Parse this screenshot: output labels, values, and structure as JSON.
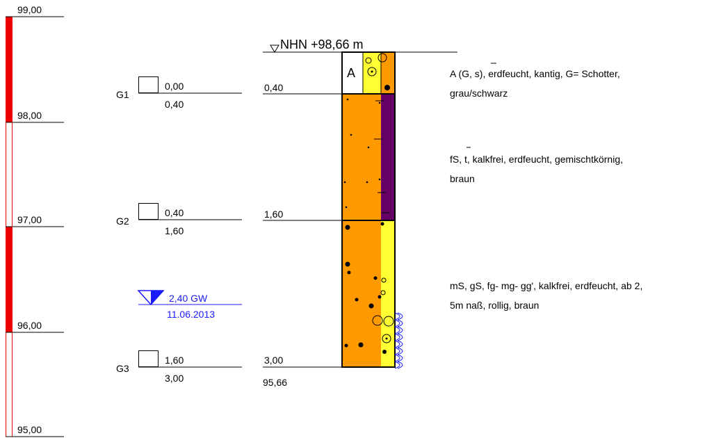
{
  "elevation_scale": {
    "ticks": [
      "99,00",
      "98,00",
      "97,00",
      "96,00",
      "95,00"
    ]
  },
  "header": {
    "ground_level": "NHN +98,66 m"
  },
  "samples": [
    {
      "id": "G1",
      "top": "0,00",
      "bottom": "0,40"
    },
    {
      "id": "G2",
      "top": "0,40",
      "bottom": "1,60"
    },
    {
      "id": "G3",
      "top": "1,60",
      "bottom": "3,00"
    }
  ],
  "groundwater": {
    "depth": "2,40 GW",
    "date": "11.06.2013"
  },
  "layer_boundaries": [
    "0,40",
    "1,60",
    "3,00"
  ],
  "bottom_elevation": "95,66",
  "layer_fill_letter": "A",
  "layers": [
    {
      "line1": "A (G, s), erdfeucht, kantig, G= Schotter,",
      "line2": "grau/schwarz"
    },
    {
      "line1": "fS, t, kalkfrei, erdfeucht, gemischtkörnig,",
      "line2": "braun"
    },
    {
      "line1": "mS, gS, fg- mg- gg', kalkfrei, erdfeucht, ab 2,",
      "line2": "5m naß, rollig, braun"
    }
  ],
  "colors": {
    "scale_red": "#ee0000",
    "fill_orange": "#ff9900",
    "fill_yellow": "#ffff33",
    "fill_purple": "#660066",
    "groundwater_blue": "#1a1aff"
  }
}
